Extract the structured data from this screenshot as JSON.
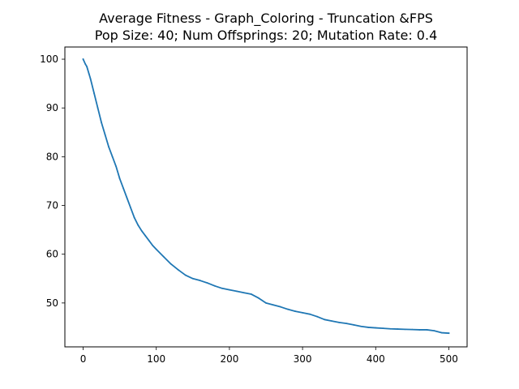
{
  "chart_data": {
    "type": "line",
    "title": "Average Fitness - Graph_Coloring - Truncation &FPS",
    "subtitle": "Pop Size: 40; Num Offsprings: 20; Mutation Rate: 0.4",
    "xlabel": "",
    "ylabel": "",
    "xlim": [
      -25,
      525
    ],
    "ylim": [
      41,
      102.5
    ],
    "grid": false,
    "x_ticks": [
      0,
      100,
      200,
      300,
      400,
      500
    ],
    "y_ticks": [
      50,
      60,
      70,
      80,
      90,
      100
    ],
    "series": [
      {
        "color": "#1f77b4",
        "x": [
          0,
          3,
          5,
          8,
          10,
          15,
          20,
          25,
          30,
          35,
          40,
          45,
          50,
          55,
          60,
          65,
          70,
          75,
          80,
          85,
          90,
          95,
          100,
          110,
          120,
          130,
          140,
          150,
          160,
          170,
          180,
          190,
          200,
          210,
          220,
          230,
          240,
          250,
          260,
          270,
          280,
          290,
          300,
          310,
          320,
          330,
          340,
          350,
          360,
          370,
          380,
          390,
          400,
          410,
          420,
          430,
          440,
          450,
          460,
          470,
          480,
          490,
          500
        ],
        "values": [
          100.0,
          99.0,
          98.5,
          97.0,
          96.0,
          93.0,
          90.0,
          87.0,
          84.5,
          82.0,
          80.0,
          78.0,
          75.5,
          73.5,
          71.5,
          69.5,
          67.5,
          66.0,
          64.8,
          63.8,
          62.8,
          61.8,
          61.0,
          59.5,
          58.0,
          56.8,
          55.7,
          55.0,
          54.6,
          54.1,
          53.5,
          53.0,
          52.7,
          52.4,
          52.1,
          51.8,
          51.0,
          50.0,
          49.6,
          49.2,
          48.7,
          48.3,
          48.0,
          47.7,
          47.2,
          46.6,
          46.3,
          46.0,
          45.8,
          45.5,
          45.2,
          45.0,
          44.9,
          44.8,
          44.7,
          44.65,
          44.6,
          44.55,
          44.5,
          44.5,
          44.3,
          43.9,
          43.8
        ]
      }
    ]
  }
}
